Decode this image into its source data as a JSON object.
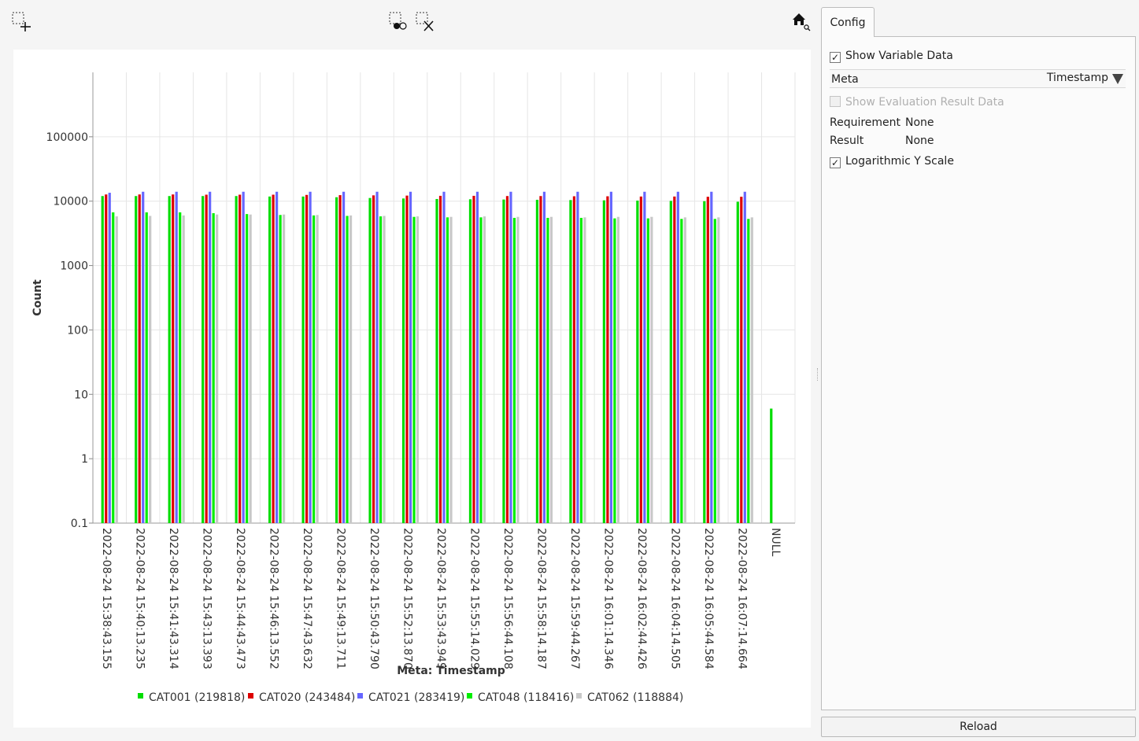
{
  "toolbar": {
    "icons": [
      "select-add-icon",
      "select-by-point-icon",
      "select-clear-icon",
      "home-zoom-icon"
    ]
  },
  "config": {
    "tab_label": "Config",
    "show_variable_data": {
      "label": "Show Variable Data",
      "checked": true
    },
    "meta_select": {
      "label": "Meta",
      "value": "Timestamp"
    },
    "show_eval_result": {
      "label": "Show Evaluation Result Data",
      "checked": false,
      "enabled": false
    },
    "requirement": {
      "label": "Requirement",
      "value": "None"
    },
    "result": {
      "label": "Result",
      "value": "None"
    },
    "log_y_scale": {
      "label": "Logarithmic Y Scale",
      "checked": true
    },
    "reload_label": "Reload"
  },
  "chart_data": {
    "type": "bar",
    "title": "",
    "xlabel": "Meta: Timestamp",
    "ylabel": "Count",
    "yscale": "log",
    "ylim": [
      0.1,
      1000000
    ],
    "yticks": [
      0.1,
      1,
      10,
      100,
      1000,
      10000,
      100000
    ],
    "ytick_labels": [
      "0.1",
      "1",
      "10",
      "100",
      "1000",
      "10000",
      "100000"
    ],
    "grid": true,
    "legend_position": "bottom",
    "categories": [
      "2022-08-24 15:38:43.155",
      "2022-08-24 15:40:13.235",
      "2022-08-24 15:41:43.314",
      "2022-08-24 15:43:13.393",
      "2022-08-24 15:44:43.473",
      "2022-08-24 15:46:13.552",
      "2022-08-24 15:47:43.632",
      "2022-08-24 15:49:13.711",
      "2022-08-24 15:50:43.790",
      "2022-08-24 15:52:13.870",
      "2022-08-24 15:53:43.949",
      "2022-08-24 15:55:14.029",
      "2022-08-24 15:56:44.108",
      "2022-08-24 15:58:14.187",
      "2022-08-24 15:59:44.267",
      "2022-08-24 16:01:14.346",
      "2022-08-24 16:02:44.426",
      "2022-08-24 16:04:14.505",
      "2022-08-24 16:05:44.584",
      "2022-08-24 16:07:14.664",
      "NULL"
    ],
    "series": [
      {
        "name": "CAT001 (219818)",
        "color": "#00dd00",
        "values": [
          12000,
          12000,
          12000,
          12000,
          12000,
          11800,
          11800,
          11500,
          11200,
          11000,
          10800,
          10700,
          10600,
          10500,
          10400,
          10300,
          10200,
          10100,
          10000,
          9800,
          6
        ]
      },
      {
        "name": "CAT020 (243484)",
        "color": "#dd0000",
        "values": [
          12700,
          12700,
          12700,
          12600,
          12600,
          12600,
          12500,
          12400,
          12300,
          12200,
          12100,
          12100,
          12000,
          12000,
          11900,
          11900,
          11800,
          11800,
          11700,
          11700,
          null
        ]
      },
      {
        "name": "CAT021 (283419)",
        "color": "#6666ff",
        "values": [
          13500,
          14000,
          14000,
          14000,
          14000,
          14000,
          14000,
          14000,
          14000,
          14000,
          14000,
          14000,
          14000,
          14000,
          14000,
          14000,
          14000,
          14000,
          14000,
          14000,
          null
        ]
      },
      {
        "name": "CAT048 (118416)",
        "color": "#00ee00",
        "values": [
          6700,
          6700,
          6700,
          6500,
          6300,
          6100,
          6000,
          5900,
          5800,
          5700,
          5600,
          5600,
          5500,
          5500,
          5500,
          5400,
          5400,
          5300,
          5300,
          5300,
          null
        ]
      },
      {
        "name": "CAT062 (118884)",
        "color": "#c8c8c8",
        "values": [
          5800,
          5900,
          6000,
          6200,
          6200,
          6200,
          6100,
          6000,
          5900,
          5800,
          5700,
          5800,
          5700,
          5700,
          5600,
          5700,
          5700,
          5600,
          5600,
          5600,
          null
        ]
      }
    ]
  }
}
